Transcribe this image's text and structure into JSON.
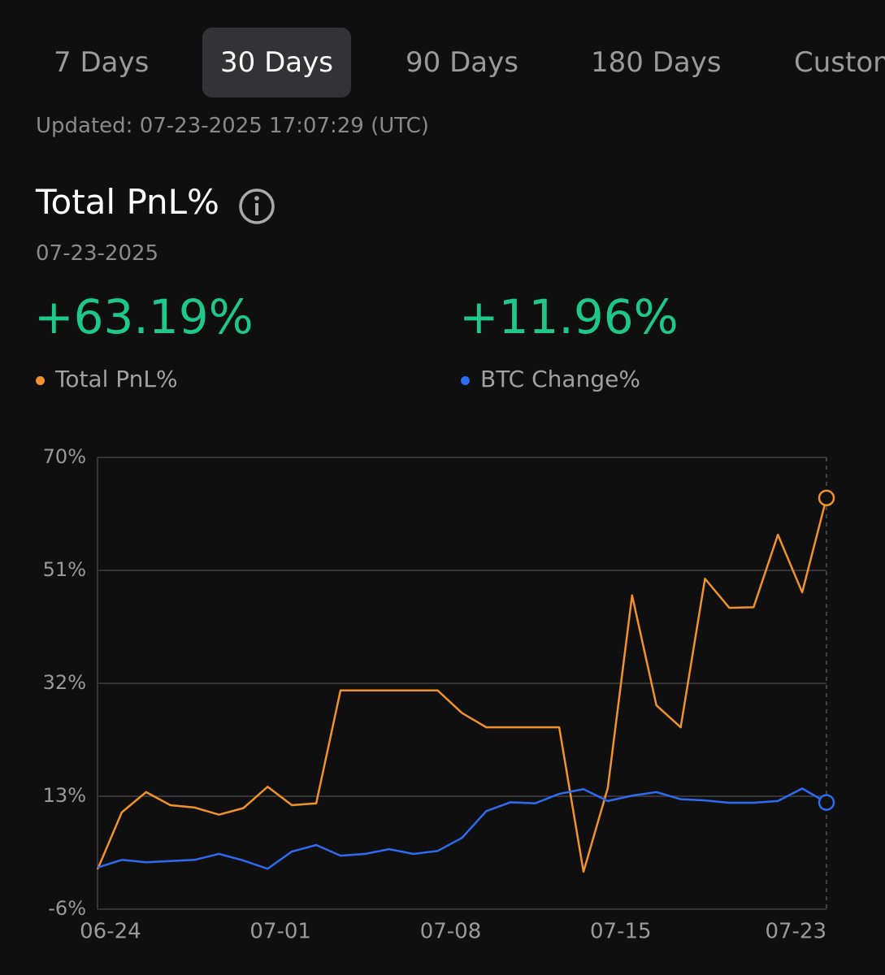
{
  "tabs": [
    "7 Days",
    "30 Days",
    "90 Days",
    "180 Days",
    "Custom"
  ],
  "updated": "Updated: 07-23-2025 17:07:29 (UTC)",
  "heading": "Total PnL%",
  "date": "07-23-2025",
  "summary": [
    "+63.19%",
    "+11.96%"
  ],
  "chart_data": {
    "type": "line",
    "categories": [
      null,
      "06-24",
      null,
      null,
      null,
      null,
      null,
      null,
      "07-01",
      null,
      null,
      null,
      null,
      null,
      null,
      "07-08",
      null,
      null,
      null,
      null,
      null,
      null,
      "07-15",
      null,
      null,
      null,
      null,
      null,
      null,
      null,
      "07-23"
    ],
    "series": [
      {
        "name": "Total PnL%",
        "color": "#f0922b",
        "values": [
          0.7,
          10.3,
          13.7,
          11.5,
          11.1,
          9.9,
          11.0,
          14.6,
          11.5,
          11.8,
          30.8,
          30.8,
          30.8,
          30.8,
          30.8,
          27.0,
          24.6,
          24.6,
          24.6,
          24.6,
          0.3,
          14.4,
          46.8,
          28.3,
          24.6,
          49.6,
          44.7,
          44.8,
          57.0,
          47.3,
          63.19
        ]
      },
      {
        "name": "BTC Change%",
        "color": "#2f6bf0",
        "values": [
          1.0,
          2.3,
          1.9,
          2.1,
          2.3,
          3.3,
          2.2,
          0.8,
          3.7,
          4.8,
          3.0,
          3.3,
          4.1,
          3.3,
          3.8,
          6.0,
          10.5,
          12.0,
          11.8,
          13.4,
          14.2,
          12.2,
          13.1,
          13.7,
          12.5,
          12.3,
          11.9,
          11.9,
          12.2,
          14.3,
          11.96
        ]
      }
    ],
    "ylim": [
      -6,
      70
    ],
    "yticks": [
      {
        "value": -6,
        "label": "-6%"
      },
      {
        "value": 13,
        "label": "13%"
      },
      {
        "value": 32,
        "label": "32%"
      },
      {
        "value": 51,
        "label": "51%"
      },
      {
        "value": 70,
        "label": "70%"
      }
    ],
    "grid": true
  }
}
